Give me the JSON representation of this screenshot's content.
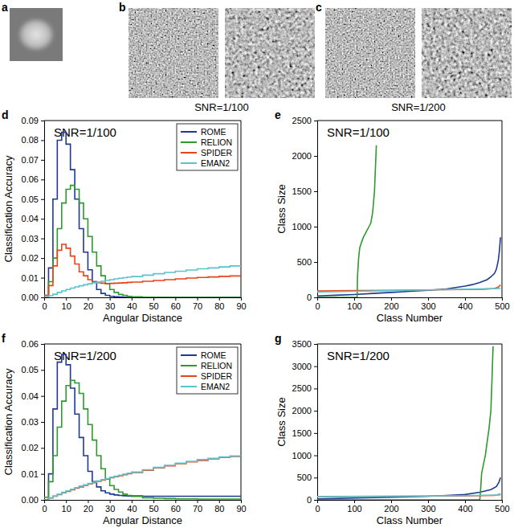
{
  "panels": [
    {
      "label": "a"
    },
    {
      "label": "b",
      "caption": "SNR=1/100"
    },
    {
      "label": "c",
      "caption": "SNR=1/200"
    }
  ],
  "chart_data": [
    {
      "type": "line",
      "panel_label": "d",
      "title": "SNR=1/100",
      "x_label": "Angular Distance",
      "y_label": "Classification Accuracy",
      "line_style": "step",
      "legend": "upper right",
      "x": [
        0,
        2,
        4,
        6,
        8,
        10,
        12,
        14,
        16,
        18,
        20,
        22,
        24,
        26,
        28,
        30,
        32,
        34,
        36,
        38,
        40,
        45,
        50,
        55,
        60,
        65,
        70,
        75,
        80,
        85,
        90
      ],
      "xlim": [
        0,
        90
      ],
      "xticks": [
        0,
        10,
        20,
        30,
        40,
        50,
        60,
        70,
        80,
        90
      ],
      "ylim": [
        0,
        0.09
      ],
      "yticks": [
        {
          "value": 0,
          "label": "0.00"
        },
        {
          "value": 0.01,
          "label": "0.01"
        },
        {
          "value": 0.02,
          "label": "0.02"
        },
        {
          "value": 0.03,
          "label": "0.03"
        },
        {
          "value": 0.04,
          "label": "0.04"
        },
        {
          "value": 0.05,
          "label": "0.05"
        },
        {
          "value": 0.06,
          "label": "0.06"
        },
        {
          "value": 0.07,
          "label": "0.07"
        },
        {
          "value": 0.08,
          "label": "0.08"
        },
        {
          "value": 0.09,
          "label": "0.09"
        }
      ],
      "series": [
        {
          "name": "ROME",
          "color": "#1f3a93",
          "values": [
            0,
            0.015,
            0.05,
            0.08,
            0.084,
            0.078,
            0.065,
            0.05,
            0.035,
            0.023,
            0.014,
            0.008,
            0.004,
            0.002,
            0.001,
            0.0005,
            0.0003,
            0.0002,
            0.0001,
            0,
            0,
            0,
            0,
            0,
            0,
            0,
            0,
            0,
            0,
            0,
            0
          ]
        },
        {
          "name": "RELION",
          "color": "#2e9a2e",
          "values": [
            0.001,
            0.008,
            0.02,
            0.035,
            0.048,
            0.055,
            0.057,
            0.055,
            0.048,
            0.04,
            0.031,
            0.023,
            0.016,
            0.011,
            0.007,
            0.004,
            0.0025,
            0.0015,
            0.001,
            0.0005,
            0.0003,
            0.0001,
            0,
            0,
            0,
            0,
            0,
            0,
            0,
            0,
            0
          ]
        },
        {
          "name": "SPIDER",
          "color": "#e8441c",
          "values": [
            0.001,
            0.006,
            0.016,
            0.024,
            0.027,
            0.025,
            0.021,
            0.017,
            0.013,
            0.011,
            0.009,
            0.008,
            0.0075,
            0.0072,
            0.007,
            0.0071,
            0.0072,
            0.0073,
            0.0074,
            0.0076,
            0.0078,
            0.0082,
            0.0086,
            0.009,
            0.0094,
            0.0098,
            0.0101,
            0.0104,
            0.0107,
            0.0109,
            0.011
          ]
        },
        {
          "name": "EMAN2",
          "color": "#5cc3cc",
          "values": [
            0,
            0.0008,
            0.0016,
            0.0025,
            0.0033,
            0.004,
            0.0047,
            0.0053,
            0.0059,
            0.0064,
            0.0069,
            0.0074,
            0.0078,
            0.0082,
            0.0086,
            0.009,
            0.0094,
            0.0097,
            0.01,
            0.0103,
            0.0106,
            0.0113,
            0.012,
            0.0127,
            0.0133,
            0.0139,
            0.0145,
            0.015,
            0.0155,
            0.016,
            0.0164
          ]
        }
      ]
    },
    {
      "type": "line",
      "panel_label": "e",
      "title": "SNR=1/100",
      "x_label": "Class Number",
      "y_label": "Class Size",
      "xlim": [
        0,
        500
      ],
      "xticks": [
        0,
        100,
        200,
        300,
        400,
        500
      ],
      "ylim": [
        0,
        2500
      ],
      "yticks": [
        0,
        500,
        1000,
        1500,
        2000,
        2500
      ],
      "series": [
        {
          "name": "ROME",
          "color": "#1f3a93",
          "x": [
            0,
            50,
            100,
            150,
            200,
            250,
            300,
            350,
            400,
            420,
            440,
            460,
            470,
            480,
            485,
            490,
            493,
            496
          ],
          "values": [
            20,
            30,
            40,
            55,
            70,
            85,
            100,
            120,
            160,
            180,
            210,
            250,
            290,
            340,
            400,
            520,
            650,
            850
          ]
        },
        {
          "name": "RELION",
          "color": "#2e9a2e",
          "x": [
            0,
            50,
            100,
            108,
            109,
            112,
            115,
            120,
            125,
            130,
            135,
            140,
            145,
            150,
            155,
            160
          ],
          "values": [
            0,
            0,
            0,
            0,
            300,
            550,
            700,
            780,
            850,
            900,
            950,
            1000,
            1050,
            1200,
            1500,
            2150
          ]
        },
        {
          "name": "SPIDER",
          "color": "#e8441c",
          "x": [
            0,
            100,
            200,
            300,
            400,
            450,
            480,
            490,
            496
          ],
          "values": [
            90,
            95,
            100,
            105,
            110,
            115,
            125,
            145,
            175
          ]
        },
        {
          "name": "EMAN2",
          "color": "#5cc3cc",
          "x": [
            0,
            100,
            200,
            300,
            400,
            496
          ],
          "values": [
            75,
            85,
            95,
            105,
            115,
            125
          ]
        }
      ]
    },
    {
      "type": "line",
      "panel_label": "f",
      "title": "SNR=1/200",
      "x_label": "Angular Distance",
      "y_label": "Classification Accuracy",
      "line_style": "step",
      "legend": "upper right",
      "x": [
        0,
        2,
        4,
        6,
        8,
        10,
        12,
        14,
        16,
        18,
        20,
        22,
        24,
        26,
        28,
        30,
        32,
        34,
        36,
        38,
        40,
        45,
        50,
        55,
        60,
        65,
        70,
        75,
        80,
        85,
        90
      ],
      "xlim": [
        0,
        90
      ],
      "xticks": [
        0,
        10,
        20,
        30,
        40,
        50,
        60,
        70,
        80,
        90
      ],
      "ylim": [
        0,
        0.06
      ],
      "yticks": [
        {
          "value": 0,
          "label": "0.00"
        },
        {
          "value": 0.01,
          "label": "0.01"
        },
        {
          "value": 0.02,
          "label": "0.02"
        },
        {
          "value": 0.03,
          "label": "0.03"
        },
        {
          "value": 0.04,
          "label": "0.04"
        },
        {
          "value": 0.05,
          "label": "0.05"
        },
        {
          "value": 0.06,
          "label": "0.06"
        }
      ],
      "series": [
        {
          "name": "ROME",
          "color": "#1f3a93",
          "values": [
            0,
            0.01,
            0.035,
            0.053,
            0.056,
            0.052,
            0.043,
            0.033,
            0.024,
            0.017,
            0.011,
            0.007,
            0.005,
            0.0035,
            0.0027,
            0.0022,
            0.0019,
            0.0017,
            0.0016,
            0.0015,
            0.0015,
            0.0014,
            0.0014,
            0.0014,
            0.0014,
            0.0014,
            0.0014,
            0.0014,
            0.0014,
            0.0014,
            0.0014
          ]
        },
        {
          "name": "RELION",
          "color": "#2e9a2e",
          "values": [
            0.001,
            0.007,
            0.017,
            0.028,
            0.038,
            0.044,
            0.046,
            0.045,
            0.041,
            0.035,
            0.029,
            0.023,
            0.017,
            0.012,
            0.008,
            0.0055,
            0.004,
            0.003,
            0.0022,
            0.0017,
            0.0013,
            0.0008,
            0.0006,
            0.0005,
            0.0004,
            0.0004,
            0.0003,
            0.0003,
            0.0003,
            0.0003,
            0.0003
          ]
        },
        {
          "name": "SPIDER",
          "color": "#e8441c",
          "values": [
            0,
            0.0007,
            0.0014,
            0.002,
            0.0027,
            0.0033,
            0.0039,
            0.0045,
            0.005,
            0.0056,
            0.0061,
            0.0066,
            0.0071,
            0.0076,
            0.008,
            0.0085,
            0.0089,
            0.0093,
            0.0097,
            0.0101,
            0.0105,
            0.0114,
            0.0123,
            0.0131,
            0.0139,
            0.0146,
            0.0152,
            0.0158,
            0.0163,
            0.0167,
            0.017
          ]
        },
        {
          "name": "EMAN2",
          "color": "#5cc3cc",
          "values": [
            0,
            0.0008,
            0.0015,
            0.0022,
            0.0029,
            0.0035,
            0.0041,
            0.0047,
            0.0053,
            0.0058,
            0.0063,
            0.0068,
            0.0073,
            0.0078,
            0.0082,
            0.0087,
            0.0091,
            0.0095,
            0.0099,
            0.0103,
            0.0107,
            0.0116,
            0.0125,
            0.0133,
            0.0141,
            0.0148,
            0.0155,
            0.016,
            0.0165,
            0.0169,
            0.0172
          ]
        }
      ]
    },
    {
      "type": "line",
      "panel_label": "g",
      "title": "SNR=1/200",
      "x_label": "Class Number",
      "y_label": "Class Size",
      "xlim": [
        0,
        500
      ],
      "xticks": [
        0,
        100,
        200,
        300,
        400,
        500
      ],
      "ylim": [
        0,
        3500
      ],
      "yticks": [
        0,
        500,
        1000,
        1500,
        2000,
        2500,
        3000,
        3500
      ],
      "series": [
        {
          "name": "ROME",
          "color": "#1f3a93",
          "x": [
            0,
            100,
            200,
            300,
            350,
            400,
            440,
            470,
            485,
            492,
            496
          ],
          "values": [
            20,
            40,
            60,
            80,
            100,
            120,
            170,
            230,
            300,
            400,
            500
          ]
        },
        {
          "name": "RELION",
          "color": "#2e9a2e",
          "x": [
            0,
            100,
            200,
            300,
            400,
            440,
            442,
            445,
            450,
            455,
            460,
            465,
            470,
            473,
            476
          ],
          "values": [
            0,
            0,
            0,
            0,
            0,
            0,
            200,
            600,
            800,
            1000,
            1300,
            1600,
            2000,
            2700,
            3450
          ]
        },
        {
          "name": "SPIDER",
          "color": "#e8441c",
          "x": [
            0,
            200,
            400,
            480,
            496
          ],
          "values": [
            75,
            80,
            90,
            100,
            130
          ]
        },
        {
          "name": "EMAN2",
          "color": "#5cc3cc",
          "x": [
            0,
            200,
            400,
            496
          ],
          "values": [
            70,
            80,
            95,
            110
          ]
        }
      ]
    }
  ]
}
